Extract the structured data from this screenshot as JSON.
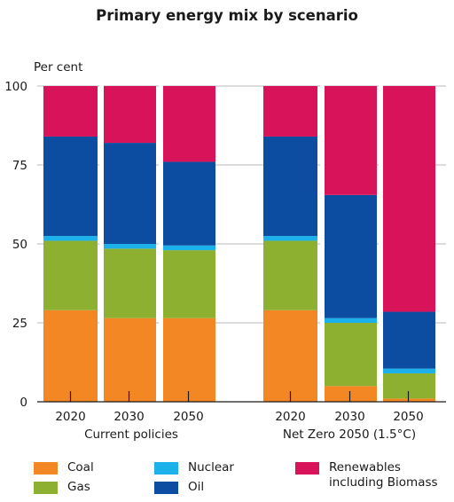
{
  "chart_data": {
    "type": "bar",
    "stacked": true,
    "title": "Primary energy mix by scenario",
    "ylabel": "Per cent",
    "ylim": [
      0,
      100
    ],
    "yticks": [
      0,
      25,
      50,
      75,
      100
    ],
    "grid": true,
    "legend_position": "bottom",
    "groups": [
      {
        "label": "Current policies",
        "categories": [
          "2020",
          "2030",
          "2050"
        ]
      },
      {
        "label": "Net Zero 2050 (1.5°C)",
        "categories": [
          "2020",
          "2030",
          "2050"
        ]
      }
    ],
    "series": [
      {
        "name": "Coal",
        "color": "#f28724",
        "values": [
          [
            29,
            26.5,
            26.5
          ],
          [
            29,
            5,
            1
          ]
        ]
      },
      {
        "name": "Gas",
        "color": "#8db030",
        "values": [
          [
            22,
            22,
            21.5
          ],
          [
            22,
            20,
            8
          ]
        ]
      },
      {
        "name": "Nuclear",
        "color": "#1cb1ea",
        "values": [
          [
            1.5,
            1.5,
            1.5
          ],
          [
            1.5,
            1.5,
            1.5
          ]
        ]
      },
      {
        "name": "Oil",
        "color": "#0c4da2",
        "values": [
          [
            31.5,
            32,
            26.5
          ],
          [
            31.5,
            39,
            18
          ]
        ]
      },
      {
        "name": "Renewables\nincluding Biomass",
        "color": "#d8135a",
        "values": [
          [
            16,
            18,
            24
          ],
          [
            16,
            34.5,
            71.5
          ]
        ]
      }
    ]
  }
}
